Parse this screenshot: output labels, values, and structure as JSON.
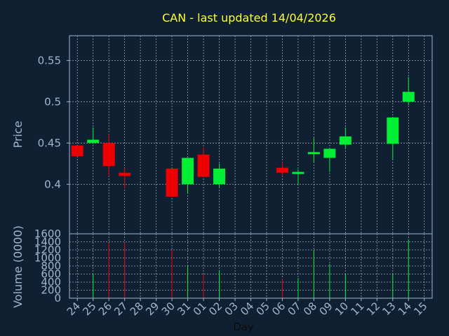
{
  "chart_data": {
    "type": "candlestick",
    "title": "CAN - last updated 14/04/2026",
    "xlabel": "Day",
    "ylabel": "Price",
    "volume_ylabel": "Volume (0000)",
    "price_ylim": [
      0.34,
      0.58
    ],
    "price_yticks": [
      {
        "value": 0.4,
        "label": "0.4"
      },
      {
        "value": 0.45,
        "label": "0.45"
      },
      {
        "value": 0.5,
        "label": "0.5"
      },
      {
        "value": 0.55,
        "label": "0.55"
      }
    ],
    "volume_ylim": [
      0,
      1600
    ],
    "volume_yticks": [
      {
        "value": 0,
        "label": "0"
      },
      {
        "value": 200,
        "label": "200"
      },
      {
        "value": 400,
        "label": "400"
      },
      {
        "value": 600,
        "label": "600"
      },
      {
        "value": 800,
        "label": "800"
      },
      {
        "value": 1000,
        "label": "1000"
      },
      {
        "value": 1200,
        "label": "1200"
      },
      {
        "value": 1400,
        "label": "1400"
      },
      {
        "value": 1600,
        "label": "1600"
      }
    ],
    "x_ticks": [
      "24",
      "25",
      "26",
      "27",
      "28",
      "29",
      "30",
      "31",
      "01",
      "02",
      "03",
      "04",
      "05",
      "06",
      "07",
      "08",
      "09",
      "10",
      "11",
      "12",
      "13",
      "14",
      "15"
    ],
    "candles": [
      {
        "day": "24",
        "open": 0.447,
        "high": 0.447,
        "low": 0.434,
        "close": 0.434
      },
      {
        "day": "25",
        "open": 0.45,
        "high": 0.469,
        "low": 0.449,
        "close": 0.454
      },
      {
        "day": "26",
        "open": 0.45,
        "high": 0.461,
        "low": 0.41,
        "close": 0.422
      },
      {
        "day": "27",
        "open": 0.414,
        "high": 0.42,
        "low": 0.395,
        "close": 0.41
      },
      {
        "day": "30",
        "open": 0.419,
        "high": 0.419,
        "low": 0.385,
        "close": 0.385
      },
      {
        "day": "31",
        "open": 0.4,
        "high": 0.432,
        "low": 0.389,
        "close": 0.432
      },
      {
        "day": "01",
        "open": 0.436,
        "high": 0.445,
        "low": 0.409,
        "close": 0.409
      },
      {
        "day": "02",
        "open": 0.4,
        "high": 0.425,
        "low": 0.396,
        "close": 0.419
      },
      {
        "day": "06",
        "open": 0.42,
        "high": 0.427,
        "low": 0.41,
        "close": 0.414
      },
      {
        "day": "07",
        "open": 0.413,
        "high": 0.418,
        "low": 0.4,
        "close": 0.415
      },
      {
        "day": "08",
        "open": 0.439,
        "high": 0.456,
        "low": 0.427,
        "close": 0.439
      },
      {
        "day": "09",
        "open": 0.432,
        "high": 0.444,
        "low": 0.415,
        "close": 0.443
      },
      {
        "day": "10",
        "open": 0.448,
        "high": 0.469,
        "low": 0.444,
        "close": 0.458
      },
      {
        "day": "13",
        "open": 0.449,
        "high": 0.481,
        "low": 0.43,
        "close": 0.481
      },
      {
        "day": "14",
        "open": 0.5,
        "high": 0.53,
        "low": 0.496,
        "close": 0.512
      }
    ],
    "volume": [
      {
        "day": "25",
        "value": 600,
        "color": "up"
      },
      {
        "day": "26",
        "value": 1380,
        "color": "down"
      },
      {
        "day": "27",
        "value": 1380,
        "color": "down"
      },
      {
        "day": "30",
        "value": 1200,
        "color": "down"
      },
      {
        "day": "31",
        "value": 800,
        "color": "up"
      },
      {
        "day": "01",
        "value": 600,
        "color": "down"
      },
      {
        "day": "02",
        "value": 700,
        "color": "up"
      },
      {
        "day": "06",
        "value": 480,
        "color": "down"
      },
      {
        "day": "07",
        "value": 500,
        "color": "up"
      },
      {
        "day": "08",
        "value": 1200,
        "color": "up"
      },
      {
        "day": "09",
        "value": 850,
        "color": "up"
      },
      {
        "day": "10",
        "value": 600,
        "color": "up"
      },
      {
        "day": "13",
        "value": 600,
        "color": "up"
      },
      {
        "day": "14",
        "value": 1450,
        "color": "up"
      }
    ],
    "grid": true,
    "colors": {
      "background": "#0f2033",
      "up": "#00ee33",
      "down": "#ee0000",
      "title": "#ffff33",
      "axis_text": "#9fb6cf",
      "frame": "#9fb6cf",
      "grid": "#c8d4e0"
    }
  }
}
